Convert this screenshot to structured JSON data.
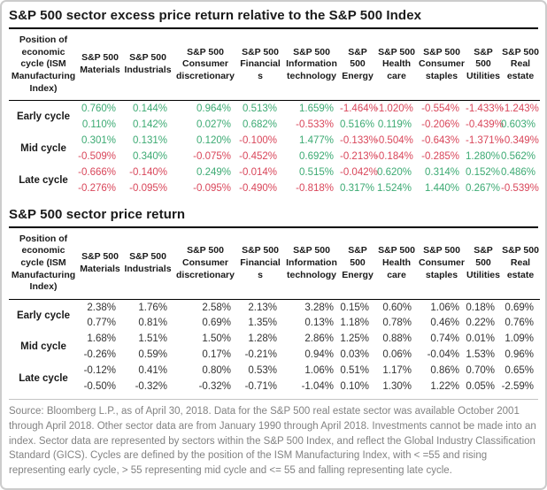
{
  "page": {
    "background": "#ffffff",
    "border_color": "#cccccc"
  },
  "colors": {
    "positive": "#3CAA73",
    "negative": "#D9465A",
    "neutral_value": "#333333",
    "title_text": "#1a1a1a",
    "footer_text": "#828282"
  },
  "tables": [
    {
      "title": "S&P 500 sector excess price return relative to the S&P 500 Index",
      "row_header": "Position of economic cycle (ISM Manufacturing Index)",
      "columns": [
        "S&P 500 Materials",
        "S&P 500 Industrials",
        "S&P 500 Consumer discretionary",
        "S&P 500 Financials",
        "S&P 500 Information technology",
        "S&P 500 Energy",
        "S&P 500 Health care",
        "S&P 500 Consumer staples",
        "S&P 500 Utilities",
        "S&P 500 Real estate"
      ],
      "color_coded": true,
      "row_groups": [
        {
          "label": "Early cycle",
          "rows": [
            [
              "0.760%",
              "0.144%",
              "0.964%",
              "0.513%",
              "1.659%",
              "-1.464%",
              "-1.020%",
              "-0.554%",
              "-1.433%",
              "-1.243%"
            ],
            [
              "0.110%",
              "0.142%",
              "0.027%",
              "0.682%",
              "-0.533%",
              "0.516%",
              "0.119%",
              "-0.206%",
              "-0.439%",
              "0.603%"
            ]
          ]
        },
        {
          "label": "Mid cycle",
          "rows": [
            [
              "0.301%",
              "0.131%",
              "0.120%",
              "-0.100%",
              "1.477%",
              "-0.133%",
              "-0.504%",
              "-0.643%",
              "-1.371%",
              "-0.349%"
            ],
            [
              "-0.509%",
              "0.340%",
              "-0.075%",
              "-0.452%",
              "0.692%",
              "-0.213%",
              "-0.184%",
              "-0.285%",
              "1.280%",
              "0.562%"
            ]
          ]
        },
        {
          "label": "Late cycle",
          "rows": [
            [
              "-0.666%",
              "-0.140%",
              "0.249%",
              "-0.014%",
              "0.515%",
              "-0.042%",
              "0.620%",
              "0.314%",
              "0.152%",
              "0.486%"
            ],
            [
              "-0.276%",
              "-0.095%",
              "-0.095%",
              "-0.490%",
              "-0.818%",
              "0.317%",
              "1.524%",
              "1.440%",
              "0.267%",
              "-0.539%"
            ]
          ]
        }
      ]
    },
    {
      "title": "S&P 500 sector price return",
      "row_header": "Position of economic cycle (ISM Manufacturing Index)",
      "columns": [
        "S&P 500 Materials",
        "S&P 500 Industrials",
        "S&P 500 Consumer discretionary",
        "S&P 500 Financials",
        "S&P 500 Information technology",
        "S&P 500 Energy",
        "S&P 500 Health care",
        "S&P 500 Consumer staples",
        "S&P 500 Utilities",
        "S&P 500 Real estate"
      ],
      "color_coded": false,
      "row_groups": [
        {
          "label": "Early cycle",
          "rows": [
            [
              "2.38%",
              "1.76%",
              "2.58%",
              "2.13%",
              "3.28%",
              "0.15%",
              "0.60%",
              "1.06%",
              "0.18%",
              "0.69%"
            ],
            [
              "0.77%",
              "0.81%",
              "0.69%",
              "1.35%",
              "0.13%",
              "1.18%",
              "0.78%",
              "0.46%",
              "0.22%",
              "0.76%"
            ]
          ]
        },
        {
          "label": "Mid cycle",
          "rows": [
            [
              "1.68%",
              "1.51%",
              "1.50%",
              "1.28%",
              "2.86%",
              "1.25%",
              "0.88%",
              "0.74%",
              "0.01%",
              "1.09%"
            ],
            [
              "-0.26%",
              "0.59%",
              "0.17%",
              "-0.21%",
              "0.94%",
              "0.03%",
              "0.06%",
              "-0.04%",
              "1.53%",
              "0.96%"
            ]
          ]
        },
        {
          "label": "Late cycle",
          "rows": [
            [
              "-0.12%",
              "0.41%",
              "0.80%",
              "0.53%",
              "1.06%",
              "0.51%",
              "1.17%",
              "0.86%",
              "0.70%",
              "0.65%"
            ],
            [
              "-0.50%",
              "-0.32%",
              "-0.32%",
              "-0.71%",
              "-1.04%",
              "0.10%",
              "1.30%",
              "1.22%",
              "0.05%",
              "-2.59%"
            ]
          ]
        }
      ]
    }
  ],
  "footer": {
    "text": "Source: Bloomberg L.P., as of April 30, 2018. Data for the S&P 500 real estate sector was available October 2001 through April 2018. Other sector data are from January 1990 through April 2018. Investments cannot be made into an index. Sector data are represented by sectors within the S&P 500 Index, and reflect the Global Industry Classification Standard (GICS). Cycles are defined by the position of the ISM Manufacturing Index, with < =55 and rising representing early cycle, > 55 representing mid cycle and <= 55 and falling representing late cycle."
  }
}
